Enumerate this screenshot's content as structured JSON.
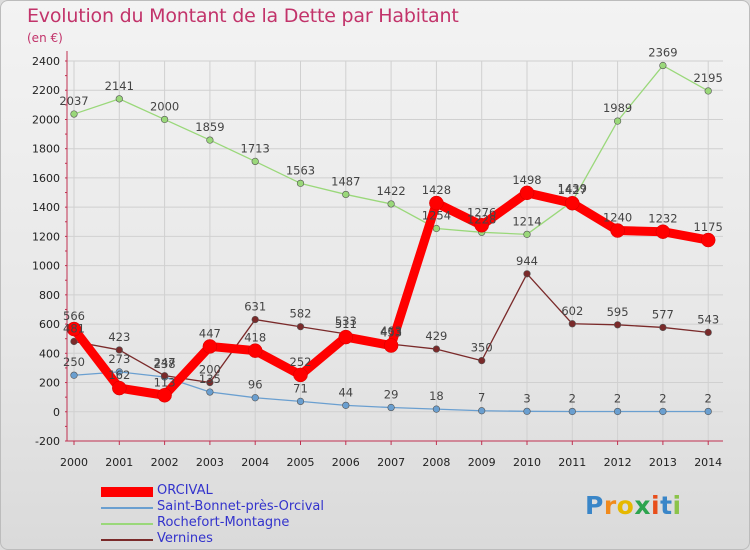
{
  "title": "Evolution du Montant de la Dette par Habitant",
  "unit_label": "(en €)",
  "logo_text": "Proxiti",
  "chart_data": {
    "type": "line",
    "title": "Evolution du Montant de la Dette par Habitant",
    "ylabel": "(en €)",
    "xlabel": "",
    "ylim": [
      -200,
      2400
    ],
    "yticks": [
      -200,
      0,
      200,
      400,
      600,
      800,
      1000,
      1200,
      1400,
      1600,
      1800,
      2000,
      2200,
      2400
    ],
    "grid": true,
    "legend_position": "bottom-left",
    "x": [
      "2000",
      "2001",
      "2002",
      "2003",
      "2004",
      "2005",
      "2006",
      "2007",
      "2008",
      "2009",
      "2010",
      "2011",
      "2012",
      "2013",
      "2014"
    ],
    "series": [
      {
        "name": "ORCIVAL",
        "color": "#ff0000",
        "values": [
          566,
          162,
          113,
          447,
          418,
          252,
          511,
          453,
          1428,
          1276,
          1498,
          1427,
          1240,
          1232,
          1175
        ]
      },
      {
        "name": "Saint-Bonnet-près-Orcival",
        "color": "#6a9fd0",
        "values": [
          250,
          273,
          238,
          135,
          96,
          71,
          44,
          29,
          18,
          7,
          3,
          2,
          2,
          2,
          2
        ]
      },
      {
        "name": "Rochefort-Montagne",
        "color": "#9ad87a",
        "values": [
          2037,
          2141,
          2000,
          1859,
          1713,
          1563,
          1487,
          1422,
          1254,
          1228,
          1214,
          1439,
          1989,
          2369,
          2195
        ]
      },
      {
        "name": "Vernines",
        "color": "#7a2a2a",
        "values": [
          481,
          423,
          247,
          200,
          631,
          582,
          533,
          463,
          429,
          350,
          944,
          602,
          595,
          577,
          543
        ]
      }
    ]
  }
}
